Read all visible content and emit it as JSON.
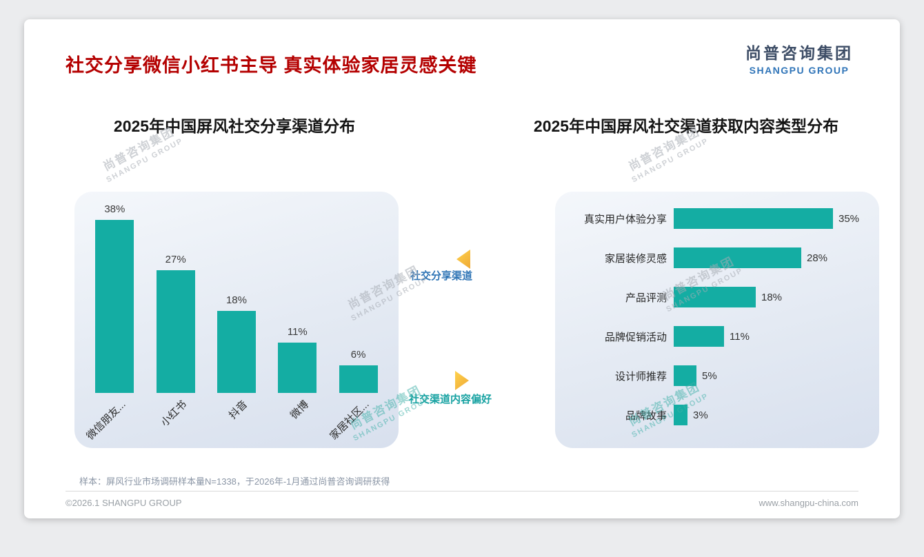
{
  "page": {
    "title": "社交分享微信小红书主导 真实体验家居灵感关键",
    "logo": {
      "cn": "尚普咨询集团",
      "en": "SHANGPU GROUP"
    },
    "watermark": {
      "cn": "尚普咨询集团",
      "en": "SHANGPU GROUP"
    },
    "footnote": "样本：屏风行业市场调研样本量N=1338，于2026年-1月通过尚普咨询调研获得",
    "footer": {
      "copyright": "©2026.1 SHANGPU GROUP",
      "website": "www.shangpu-china.com"
    }
  },
  "annotations": {
    "share_channel": "社交分享渠道",
    "content_preference": "社交渠道内容偏好"
  },
  "chart_data": [
    {
      "type": "bar",
      "orientation": "vertical",
      "title": "2025年中国屏风社交分享渠道分布",
      "categories": [
        "微信朋友...",
        "小红书",
        "抖音",
        "微博",
        "家居社区..."
      ],
      "values": [
        38,
        27,
        18,
        11,
        6
      ],
      "unit": "%",
      "ylim": [
        0,
        40
      ],
      "grid": false,
      "legend": false,
      "bar_color": "#14ada3"
    },
    {
      "type": "bar",
      "orientation": "horizontal",
      "title": "2025年中国屏风社交渠道获取内容类型分布",
      "categories": [
        "真实用户体验分享",
        "家居装修灵感",
        "产品评测",
        "品牌促销活动",
        "设计师推荐",
        "品牌故事"
      ],
      "values": [
        35,
        28,
        18,
        11,
        5,
        3
      ],
      "unit": "%",
      "xlim": [
        0,
        40
      ],
      "grid": false,
      "legend": false,
      "bar_color": "#14ada3"
    }
  ],
  "colors": {
    "bar_teal": "#14ada3",
    "title_red": "#b40000",
    "annotation_blue": "#2e74b5",
    "annotation_teal": "#17a2a2",
    "marker_yellow": "#f5b73a",
    "logo_navy": "#3d4d66",
    "logo_blue": "#2f74b8",
    "card_gradient_top": "#f4f7fb",
    "card_gradient_bottom": "#d8e0ee"
  }
}
